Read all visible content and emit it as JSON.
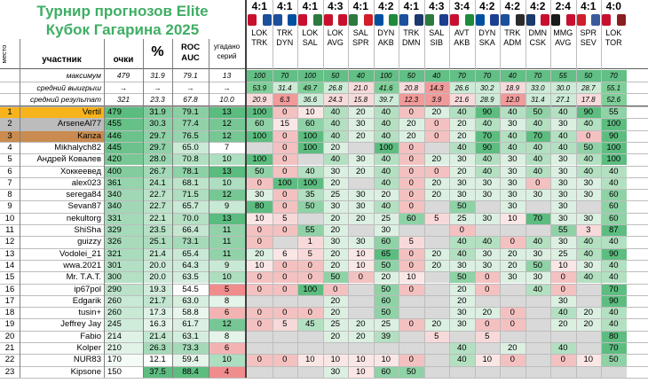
{
  "title_line1": "Турнир прогнозов Elite",
  "title_line2": "Кубок Гагарина 2025",
  "headers": {
    "place": "место",
    "participant": "участник",
    "points": "очки",
    "percent": "%",
    "roc_line1": "ROC",
    "roc_line2": "AUC",
    "series_line1": "угадано",
    "series_line2": "серий"
  },
  "summary_labels": [
    "максимум",
    "средний выигрыш",
    "средний результат"
  ],
  "summary_values": [
    [
      "479",
      "31.9",
      "79.1",
      "13"
    ],
    [
      "→",
      "→",
      "→",
      "→"
    ],
    [
      "321",
      "23.3",
      "67.8",
      "10.0"
    ]
  ],
  "match_summary": [
    [
      "100",
      "70",
      "100",
      "50",
      "40",
      "100",
      "50",
      "40",
      "70",
      "70",
      "40",
      "70",
      "55",
      "50",
      "70",
      "100"
    ],
    [
      "53.9",
      "31.4",
      "49.7",
      "26.8",
      "21.0",
      "41.6",
      "20.8",
      "14.3",
      "26.6",
      "30.2",
      "18.9",
      "33.0",
      "30.0",
      "28.7",
      "55.1",
      ""
    ],
    [
      "20.9",
      "6.3",
      "36.6",
      "24.3",
      "15.8",
      "39.7",
      "12.3",
      "3.9",
      "21.6",
      "28.9",
      "12.0",
      "31.4",
      "27.1",
      "17.8",
      "52.6",
      ""
    ]
  ],
  "matches": [
    {
      "score": "4:1",
      "abbr1": "LOK",
      "abbr2": "TRK",
      "c1": "#c8102e",
      "c2": "#1c4f9c"
    },
    {
      "score": "4:1",
      "abbr1": "TRK",
      "abbr2": "DYN",
      "c1": "#1c4f9c",
      "c2": "#0050a0"
    },
    {
      "score": "4:1",
      "abbr1": "LOK",
      "abbr2": "SAL",
      "c1": "#c8102e",
      "c2": "#2d7a3e"
    },
    {
      "score": "4:3",
      "abbr1": "LOK",
      "abbr2": "AVG",
      "c1": "#c8102e",
      "c2": "#c8102e"
    },
    {
      "score": "4:1",
      "abbr1": "SAL",
      "abbr2": "SPR",
      "c1": "#2d7a3e",
      "c2": "#d01f2a"
    },
    {
      "score": "4:2",
      "abbr1": "DYN",
      "abbr2": "AKB",
      "c1": "#0050a0",
      "c2": "#1e8a3c"
    },
    {
      "score": "4:1",
      "abbr1": "TRK",
      "abbr2": "DMN",
      "c1": "#1c4f9c",
      "c2": "#1a3a6b"
    },
    {
      "score": "4:3",
      "abbr1": "SAL",
      "abbr2": "SIB",
      "c1": "#2d7a3e",
      "c2": "#1d3f8f"
    },
    {
      "score": "3:4",
      "abbr1": "AVT",
      "abbr2": "AKB",
      "c1": "#c8102e",
      "c2": "#1e8a3c"
    },
    {
      "score": "4:2",
      "abbr1": "DYN",
      "abbr2": "SKA",
      "c1": "#0050a0",
      "c2": "#1d3f8f"
    },
    {
      "score": "4:2",
      "abbr1": "TRK",
      "abbr2": "ADM",
      "c1": "#1c4f9c",
      "c2": "#2b2b2b"
    },
    {
      "score": "4:2",
      "abbr1": "DMN",
      "abbr2": "CSK",
      "c1": "#1a3a6b",
      "c2": "#c8102e"
    },
    {
      "score": "2:4",
      "abbr1": "MMG",
      "abbr2": "AVG",
      "c1": "#1a1a1a",
      "c2": "#c8102e"
    },
    {
      "score": "4:1",
      "abbr1": "SPR",
      "abbr2": "SEV",
      "c1": "#d01f2a",
      "c2": "#3a5a9c"
    },
    {
      "score": "4:0",
      "abbr1": "LOK",
      "abbr2": "TOR",
      "c1": "#c8102e",
      "c2": "#8a1f1f"
    }
  ],
  "participants": [
    {
      "place": "1",
      "name": "Vertil",
      "points": "479",
      "pct": "31.9",
      "roc": "79.1",
      "series": "13",
      "m": [
        "100",
        "0",
        "10",
        "40",
        "20",
        "40",
        "0",
        "20",
        "40",
        "90",
        "40",
        "50",
        "40",
        "90",
        "55"
      ]
    },
    {
      "place": "2",
      "name": "ArseneAl77",
      "points": "455",
      "pct": "30.3",
      "roc": "77.4",
      "series": "12",
      "m": [
        "60",
        "15",
        "60",
        "40",
        "30",
        "40",
        "20",
        "0",
        "20",
        "40",
        "30",
        "40",
        "30",
        "40",
        "100"
      ]
    },
    {
      "place": "3",
      "name": "Kanza",
      "points": "446",
      "pct": "29.7",
      "roc": "76.5",
      "series": "12",
      "m": [
        "100",
        "0",
        "100",
        "40",
        "20",
        "40",
        "20",
        "0",
        "20",
        "70",
        "40",
        "70",
        "40",
        "0",
        "90"
      ]
    },
    {
      "place": "4",
      "name": "Mikhalych82",
      "points": "445",
      "pct": "29.7",
      "roc": "65.0",
      "series": "7",
      "m": [
        "",
        "0",
        "100",
        "20",
        "",
        "100",
        "0",
        "",
        "40",
        "90",
        "40",
        "40",
        "40",
        "50",
        "100"
      ]
    },
    {
      "place": "5",
      "name": "Андрей Ковалев",
      "points": "420",
      "pred": "",
      "pct": "28.0",
      "roc": "70.8",
      "series": "10",
      "m": [
        "100",
        "0",
        "",
        "40",
        "30",
        "40",
        "0",
        "20",
        "30",
        "40",
        "30",
        "40",
        "30",
        "40",
        "100"
      ]
    },
    {
      "place": "6",
      "name": "Хоккеевед",
      "points": "400",
      "pct": "26.7",
      "roc": "78.1",
      "series": "13",
      "m": [
        "50",
        "0",
        "40",
        "30",
        "20",
        "40",
        "0",
        "0",
        "20",
        "40",
        "30",
        "40",
        "30",
        "40",
        "40"
      ]
    },
    {
      "place": "7",
      "name": "alex023",
      "points": "361",
      "pct": "24.1",
      "roc": "68.1",
      "series": "10",
      "m": [
        "0",
        "100",
        "100",
        "20",
        "",
        "40",
        "0",
        "20",
        "30",
        "30",
        "30",
        "0",
        "30",
        "30",
        "40"
      ]
    },
    {
      "place": "8",
      "name": "serega84",
      "points": "340",
      "pct": "22.7",
      "roc": "71.5",
      "series": "12",
      "m": [
        "30",
        "0",
        "35",
        "25",
        "30",
        "20",
        "0",
        "20",
        "30",
        "30",
        "30",
        "30",
        "30",
        "30",
        "60"
      ]
    },
    {
      "place": "9",
      "name": "Sevan87",
      "points": "340",
      "pct": "22.7",
      "roc": "65.7",
      "series": "9",
      "m": [
        "80",
        "0",
        "50",
        "30",
        "30",
        "40",
        "0",
        "",
        "50",
        "",
        "30",
        "",
        "30",
        "",
        "60"
      ]
    },
    {
      "place": "10",
      "name": "nekultorg",
      "points": "331",
      "pct": "22.1",
      "roc": "70.0",
      "series": "13",
      "m": [
        "10",
        "5",
        "",
        "20",
        "20",
        "25",
        "60",
        "5",
        "25",
        "30",
        "10",
        "70",
        "30",
        "30",
        "60"
      ]
    },
    {
      "place": "11",
      "name": "ShiSha",
      "points": "329",
      "pct": "23.5",
      "roc": "66.4",
      "series": "11",
      "m": [
        "0",
        "0",
        "55",
        "20",
        "",
        "30",
        "",
        "",
        "0",
        "",
        "",
        "",
        "55",
        "3",
        "87"
      ]
    },
    {
      "place": "12",
      "name": "guizzy",
      "points": "326",
      "pct": "25.1",
      "roc": "73.1",
      "series": "11",
      "m": [
        "0",
        "",
        "1",
        "30",
        "30",
        "60",
        "5",
        "",
        "40",
        "40",
        "0",
        "40",
        "30",
        "40",
        "40"
      ]
    },
    {
      "place": "13",
      "name": "Vodolei_21",
      "points": "321",
      "pct": "21.4",
      "roc": "65.4",
      "series": "11",
      "m": [
        "20",
        "6",
        "5",
        "20",
        "10",
        "65",
        "0",
        "20",
        "40",
        "30",
        "20",
        "30",
        "25",
        "40",
        "90"
      ]
    },
    {
      "place": "14",
      "name": "wwa.2021",
      "points": "301",
      "pct": "20.0",
      "roc": "64.3",
      "series": "9",
      "m": [
        "10",
        "0",
        "0",
        "20",
        "10",
        "50",
        "0",
        "20",
        "30",
        "30",
        "20",
        "50",
        "10",
        "30",
        "40"
      ]
    },
    {
      "place": "15",
      "name": "Mr. T.A.T.",
      "points": "300",
      "pct": "20.0",
      "roc": "63.5",
      "series": "10",
      "m": [
        "0",
        "0",
        "0",
        "50",
        "0",
        "20",
        "10",
        "",
        "50",
        "0",
        "30",
        "30",
        "0",
        "40",
        "40"
      ]
    },
    {
      "place": "16",
      "name": "ip67pol",
      "points": "290",
      "pct": "19.3",
      "roc": "54.5",
      "series": "5",
      "m": [
        "0",
        "0",
        "100",
        "0",
        "",
        "50",
        "0",
        "",
        "20",
        "0",
        "",
        "40",
        "0",
        "",
        "70"
      ]
    },
    {
      "place": "17",
      "name": "Edgarik",
      "points": "260",
      "pct": "21.7",
      "roc": "63.0",
      "series": "8",
      "m": [
        "",
        "",
        "",
        "20",
        "",
        "60",
        "",
        "",
        "20",
        "",
        "",
        "",
        "30",
        "",
        "90"
      ]
    },
    {
      "place": "18",
      "name": "tusin+",
      "points": "260",
      "pct": "17.3",
      "roc": "58.8",
      "series": "6",
      "m": [
        "0",
        "0",
        "0",
        "20",
        "",
        "50",
        "",
        "",
        "30",
        "20",
        "0",
        "",
        "40",
        "20",
        "40"
      ]
    },
    {
      "place": "19",
      "name": "Jeffrey Jay",
      "points": "245",
      "pct": "16.3",
      "roc": "61.7",
      "series": "12",
      "m": [
        "0",
        "5",
        "45",
        "25",
        "20",
        "25",
        "0",
        "20",
        "30",
        "0",
        "0",
        "",
        "20",
        "20",
        "40"
      ]
    },
    {
      "place": "20",
      "name": "Fabio",
      "points": "214",
      "pct": "21.4",
      "roc": "63.1",
      "series": "8",
      "m": [
        "",
        "",
        "",
        "20",
        "20",
        "39",
        "",
        "5",
        "",
        "5",
        "",
        "",
        "",
        "",
        "80"
      ]
    },
    {
      "place": "21",
      "name": "Kolper",
      "points": "210",
      "pct": "26.3",
      "roc": "73.3",
      "series": "6",
      "m": [
        "",
        "",
        "",
        "",
        "",
        "",
        "",
        "",
        "40",
        "",
        "20",
        "",
        "40",
        "",
        "70"
      ]
    },
    {
      "place": "22",
      "name": "NUR83",
      "points": "170",
      "pct": "12.1",
      "roc": "59.4",
      "series": "10",
      "m": [
        "0",
        "0",
        "10",
        "10",
        "10",
        "10",
        "0",
        "",
        "40",
        "10",
        "0",
        "",
        "0",
        "10",
        "50"
      ]
    },
    {
      "place": "23",
      "name": "Kipsone",
      "points": "150",
      "pct": "37.5",
      "roc": "88.4",
      "series": "4",
      "m": [
        "",
        "",
        "",
        "30",
        "10",
        "60",
        "50",
        "",
        "",
        "",
        "",
        "",
        "",
        "",
        ""
      ]
    }
  ]
}
